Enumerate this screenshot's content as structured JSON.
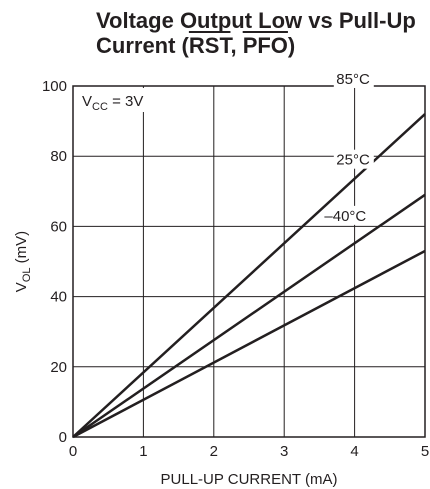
{
  "title": {
    "prefix": "Voltage Output Low vs Pull-Up",
    "line2_pre": "Current (",
    "sig1": "RST",
    "sep": ", ",
    "sig2": "PFO",
    "line2_post": ")"
  },
  "chart_data": {
    "type": "line",
    "xlabel": "PULL-UP CURRENT (mA)",
    "ylabel": "V_OL (mV)",
    "xlim": [
      0,
      5
    ],
    "ylim": [
      0,
      100
    ],
    "x_ticks": [
      0,
      1,
      2,
      3,
      4,
      5
    ],
    "y_ticks": [
      0,
      20,
      40,
      60,
      80,
      100
    ],
    "grid": true,
    "annotation": "V_CC = 3V",
    "series": [
      {
        "name": "85°C",
        "x": [
          0,
          5
        ],
        "y": [
          0,
          92
        ]
      },
      {
        "name": "25°C",
        "x": [
          0,
          5
        ],
        "y": [
          0,
          69
        ]
      },
      {
        "name": "–40°C",
        "x": [
          0,
          5
        ],
        "y": [
          0,
          53
        ]
      }
    ]
  }
}
